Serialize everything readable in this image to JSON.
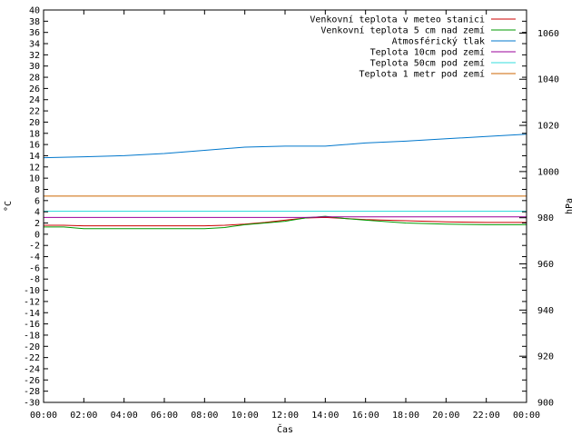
{
  "chart_data": {
    "type": "line",
    "title": "",
    "xlabel": "Čas",
    "ylabel": "°C",
    "y2label": "hPa",
    "x_ticks": [
      "00:00",
      "02:00",
      "04:00",
      "06:00",
      "08:00",
      "10:00",
      "12:00",
      "14:00",
      "16:00",
      "18:00",
      "20:00",
      "22:00",
      "00:00"
    ],
    "xlim_hours": [
      0,
      24
    ],
    "ylim": [
      -30,
      40
    ],
    "y_tick_step": 2,
    "y2lim": [
      900,
      1070
    ],
    "y2_ticks": [
      900,
      920,
      940,
      960,
      980,
      1000,
      1020,
      1040,
      1060
    ],
    "grid": false,
    "legend_position": "top-right",
    "series": [
      {
        "name": "Venkovní teplota v meteo stanici",
        "color": "#cc0000",
        "axis": "y1",
        "x": [
          0,
          1,
          2,
          4,
          6,
          8,
          9,
          10,
          11,
          12,
          13,
          14,
          16,
          18,
          20,
          22,
          24
        ],
        "y": [
          1.6,
          1.6,
          1.5,
          1.5,
          1.5,
          1.5,
          1.6,
          1.8,
          2.1,
          2.5,
          2.9,
          3.0,
          2.6,
          2.4,
          2.2,
          2.1,
          2.1
        ]
      },
      {
        "name": "Venkovní teplota 5 cm nad zemí",
        "color": "#009900",
        "axis": "y1",
        "x": [
          0,
          1,
          2,
          4,
          6,
          7,
          8,
          9,
          10,
          11,
          12,
          12.5,
          13,
          14,
          15,
          16,
          18,
          20,
          22,
          24
        ],
        "y": [
          1.3,
          1.3,
          1.0,
          1.0,
          1.0,
          1.0,
          1.0,
          1.2,
          1.7,
          2.0,
          2.3,
          2.6,
          2.9,
          3.2,
          2.8,
          2.5,
          2.0,
          1.8,
          1.7,
          1.7
        ]
      },
      {
        "name": "Atmosférický tlak",
        "color": "#0077cc",
        "axis": "y2",
        "x": [
          0,
          2,
          4,
          6,
          8,
          10,
          12,
          14,
          16,
          18,
          20,
          22,
          24
        ],
        "y": [
          1006,
          1006.4,
          1006.9,
          1007.8,
          1009.2,
          1010.6,
          1011.0,
          1011.0,
          1012.4,
          1013.2,
          1014.2,
          1015.2,
          1016.2
        ]
      },
      {
        "name": "Teplota 10cm pod zemí",
        "color": "#990099",
        "axis": "y1",
        "x": [
          0,
          6,
          12,
          13,
          14,
          18,
          24
        ],
        "y": [
          3.0,
          3.0,
          3.0,
          3.0,
          3.1,
          3.1,
          3.1
        ]
      },
      {
        "name": "Teplota 50cm pod zemí",
        "color": "#33dddd",
        "axis": "y1",
        "x": [
          0,
          6,
          12,
          18,
          24
        ],
        "y": [
          4.1,
          4.1,
          4.1,
          4.1,
          4.1
        ]
      },
      {
        "name": "Teplota 1 metr pod zemí",
        "color": "#cc6600",
        "axis": "y1",
        "x": [
          0,
          6,
          12,
          13,
          14,
          18,
          24
        ],
        "y": [
          6.8,
          6.8,
          6.8,
          6.8,
          6.8,
          6.8,
          6.8
        ]
      }
    ]
  }
}
